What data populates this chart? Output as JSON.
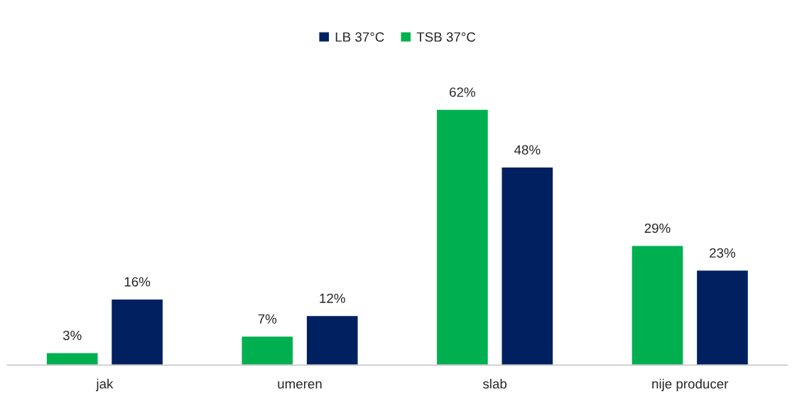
{
  "chart_data": {
    "type": "bar",
    "categories": [
      "jak",
      "umeren",
      "slab",
      "nije producer"
    ],
    "series": [
      {
        "name": "TSB 37°C",
        "color": "#00b050",
        "values": [
          3,
          7,
          62,
          29
        ],
        "value_labels": [
          "3%",
          "7%",
          "62%",
          "29%"
        ]
      },
      {
        "name": "LB 37°C",
        "color": "#002060",
        "values": [
          16,
          12,
          48,
          23
        ],
        "value_labels": [
          "16%",
          "12%",
          "48%",
          "23%"
        ]
      }
    ],
    "legend": "top",
    "grid": false,
    "tick_labels": "x"
  }
}
